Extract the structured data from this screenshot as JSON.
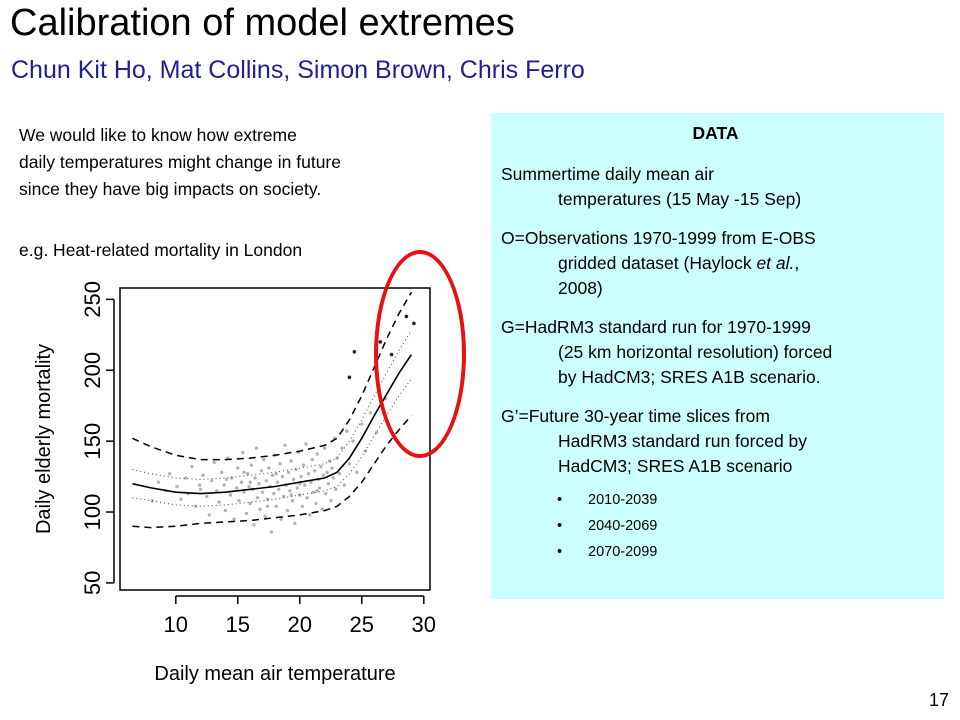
{
  "slide": {
    "title": "Calibration of model extremes",
    "authors": "Chun Kit Ho, Mat Collins, Simon Brown, Chris Ferro",
    "intro_lines": [
      "We would like to know how extreme",
      "daily temperatures might change in future",
      "since they have big impacts on society."
    ],
    "example": "e.g. Heat-related mortality in London",
    "page_number": "17"
  },
  "data_box": {
    "heading": "DATA",
    "paragraphs": [
      {
        "first": "Summertime daily mean air",
        "rest": [
          "temperatures (15 May -15 Sep)"
        ]
      },
      {
        "first": "O=Observations 1970-1999 from E-OBS",
        "rest": [
          "gridded dataset (Haylock et al.,",
          "2008)"
        ]
      },
      {
        "first": "G=HadRM3 standard run for 1970-1999",
        "rest": [
          "(25 km horizontal resolution) forced",
          "by HadCM3; SRES A1B scenario."
        ]
      },
      {
        "first": "G’=Future 30-year time slices from",
        "rest": [
          "HadRM3 standard run forced by",
          "HadCM3; SRES A1B scenario"
        ]
      }
    ],
    "bullets": [
      "2010-2039",
      "2040-2069",
      "2070-2099"
    ]
  },
  "colors": {
    "data_box_bg": "#ccffff",
    "author_text": "#1f1f8f",
    "highlight_oval": "#e81010",
    "scatter_points": "#b3b3b3"
  },
  "chart_data": {
    "type": "scatter",
    "xlabel": "Daily mean air temperature",
    "ylabel": "Daily elderly mortality",
    "xlim": [
      5.5,
      30.5
    ],
    "ylim": [
      45,
      258
    ],
    "xticks": [
      10,
      15,
      20,
      25,
      30
    ],
    "yticks": [
      50,
      100,
      150,
      200,
      250
    ],
    "grid": false,
    "series": [
      {
        "style": "solid",
        "x": [
          6.5,
          8,
          10,
          12,
          14,
          16,
          18,
          20,
          22,
          23,
          24,
          25,
          26,
          27,
          28,
          29
        ],
        "y": [
          120,
          117,
          114,
          113,
          114,
          116,
          118,
          121,
          124,
          128,
          138,
          152,
          168,
          183,
          198,
          211
        ]
      },
      {
        "style": "dashed",
        "x": [
          6.5,
          8,
          10,
          12,
          14,
          16,
          18,
          20,
          22,
          23,
          24,
          25,
          26,
          27,
          28,
          29
        ],
        "y": [
          152,
          146,
          140,
          137,
          137,
          138,
          140,
          143,
          147,
          152,
          165,
          182,
          202,
          222,
          240,
          255
        ]
      },
      {
        "style": "dashed",
        "x": [
          6.5,
          8,
          10,
          12,
          14,
          16,
          18,
          20,
          22,
          23,
          24,
          25,
          26,
          27,
          28,
          29
        ],
        "y": [
          90,
          89,
          90,
          92,
          93,
          94,
          96,
          98,
          101,
          104,
          111,
          121,
          134,
          147,
          158,
          168
        ]
      },
      {
        "style": "dotted",
        "x": [
          6.5,
          8,
          10,
          12,
          14,
          16,
          18,
          20,
          22,
          23,
          24,
          25,
          26,
          27,
          28,
          29
        ],
        "y": [
          130,
          127,
          124,
          123,
          124,
          126,
          128,
          131,
          134,
          138,
          150,
          165,
          182,
          198,
          214,
          228
        ]
      },
      {
        "style": "dotted",
        "x": [
          6.5,
          8,
          10,
          12,
          14,
          16,
          18,
          20,
          22,
          23,
          24,
          25,
          26,
          27,
          28,
          29
        ],
        "y": [
          110,
          108,
          105,
          104,
          105,
          107,
          109,
          112,
          115,
          118,
          127,
          139,
          154,
          168,
          182,
          194
        ]
      }
    ],
    "scatter_points": [
      [
        8.1,
        108
      ],
      [
        8.6,
        121
      ],
      [
        9.2,
        115
      ],
      [
        9.5,
        127
      ],
      [
        10.1,
        118
      ],
      [
        10.4,
        109
      ],
      [
        10.8,
        124
      ],
      [
        11.0,
        113
      ],
      [
        11.3,
        132
      ],
      [
        11.6,
        104
      ],
      [
        11.9,
        119
      ],
      [
        12.2,
        126
      ],
      [
        12.5,
        111
      ],
      [
        12.7,
        98
      ],
      [
        12.9,
        122
      ],
      [
        13.1,
        135
      ],
      [
        13.3,
        115
      ],
      [
        13.5,
        107
      ],
      [
        13.7,
        128
      ],
      [
        13.9,
        119
      ],
      [
        14.0,
        101
      ],
      [
        14.2,
        138
      ],
      [
        14.4,
        112
      ],
      [
        14.5,
        124
      ],
      [
        14.7,
        95
      ],
      [
        14.9,
        117
      ],
      [
        15.0,
        131
      ],
      [
        15.1,
        108
      ],
      [
        15.3,
        121
      ],
      [
        15.4,
        142
      ],
      [
        15.5,
        114
      ],
      [
        15.7,
        99
      ],
      [
        15.8,
        127
      ],
      [
        15.9,
        118
      ],
      [
        16.0,
        106
      ],
      [
        16.1,
        133
      ],
      [
        16.2,
        116
      ],
      [
        16.3,
        91
      ],
      [
        16.4,
        124
      ],
      [
        16.5,
        145
      ],
      [
        16.6,
        110
      ],
      [
        16.7,
        120
      ],
      [
        16.8,
        102
      ],
      [
        16.9,
        129
      ],
      [
        17.0,
        114
      ],
      [
        17.1,
        137
      ],
      [
        17.2,
        97
      ],
      [
        17.3,
        122
      ],
      [
        17.4,
        109
      ],
      [
        17.5,
        131
      ],
      [
        17.6,
        118
      ],
      [
        17.7,
        86
      ],
      [
        17.8,
        126
      ],
      [
        17.9,
        113
      ],
      [
        18.0,
        140
      ],
      [
        18.1,
        104
      ],
      [
        18.2,
        121
      ],
      [
        18.3,
        116
      ],
      [
        18.4,
        134
      ],
      [
        18.5,
        95
      ],
      [
        18.6,
        125
      ],
      [
        18.7,
        111
      ],
      [
        18.8,
        147
      ],
      [
        18.9,
        119
      ],
      [
        19.0,
        101
      ],
      [
        19.1,
        128
      ],
      [
        19.2,
        115
      ],
      [
        19.3,
        136
      ],
      [
        19.4,
        108
      ],
      [
        19.5,
        123
      ],
      [
        19.6,
        92
      ],
      [
        19.7,
        130
      ],
      [
        19.8,
        117
      ],
      [
        19.9,
        142
      ],
      [
        20.0,
        112
      ],
      [
        20.1,
        125
      ],
      [
        20.2,
        104
      ],
      [
        20.3,
        133
      ],
      [
        20.4,
        119
      ],
      [
        20.5,
        148
      ],
      [
        20.6,
        110
      ],
      [
        20.7,
        127
      ],
      [
        20.8,
        98
      ],
      [
        20.9,
        121
      ],
      [
        21.0,
        137
      ],
      [
        21.1,
        114
      ],
      [
        21.2,
        129
      ],
      [
        21.3,
        106
      ],
      [
        21.4,
        141
      ],
      [
        21.5,
        123
      ],
      [
        21.6,
        117
      ],
      [
        21.7,
        132
      ],
      [
        21.8,
        102
      ],
      [
        21.9,
        126
      ],
      [
        22.0,
        145
      ],
      [
        22.1,
        113
      ],
      [
        22.2,
        128
      ],
      [
        22.3,
        120
      ],
      [
        22.4,
        136
      ],
      [
        22.5,
        108
      ],
      [
        22.6,
        131
      ],
      [
        22.7,
        124
      ],
      [
        22.8,
        152
      ],
      [
        22.9,
        116
      ],
      [
        23.0,
        138
      ],
      [
        23.2,
        127
      ],
      [
        23.4,
        145
      ],
      [
        23.6,
        119
      ],
      [
        23.8,
        157
      ],
      [
        24.0,
        134
      ],
      [
        24.3,
        150
      ],
      [
        24.6,
        128
      ],
      [
        25.0,
        162
      ],
      [
        25.3,
        143
      ],
      [
        25.7,
        170
      ],
      [
        26.2,
        156
      ],
      [
        26.9,
        180
      ],
      [
        12.0,
        116
      ],
      [
        14.1,
        123
      ],
      [
        16.0,
        121
      ],
      [
        18.1,
        127
      ],
      [
        20.0,
        120
      ],
      [
        21.4,
        115
      ],
      [
        15.5,
        128
      ],
      [
        17.4,
        104
      ],
      [
        19.3,
        112
      ],
      [
        24.4,
        213
      ],
      [
        24.0,
        195
      ],
      [
        26.5,
        220
      ],
      [
        27.4,
        211
      ],
      [
        28.6,
        238
      ],
      [
        29.2,
        233
      ]
    ]
  }
}
